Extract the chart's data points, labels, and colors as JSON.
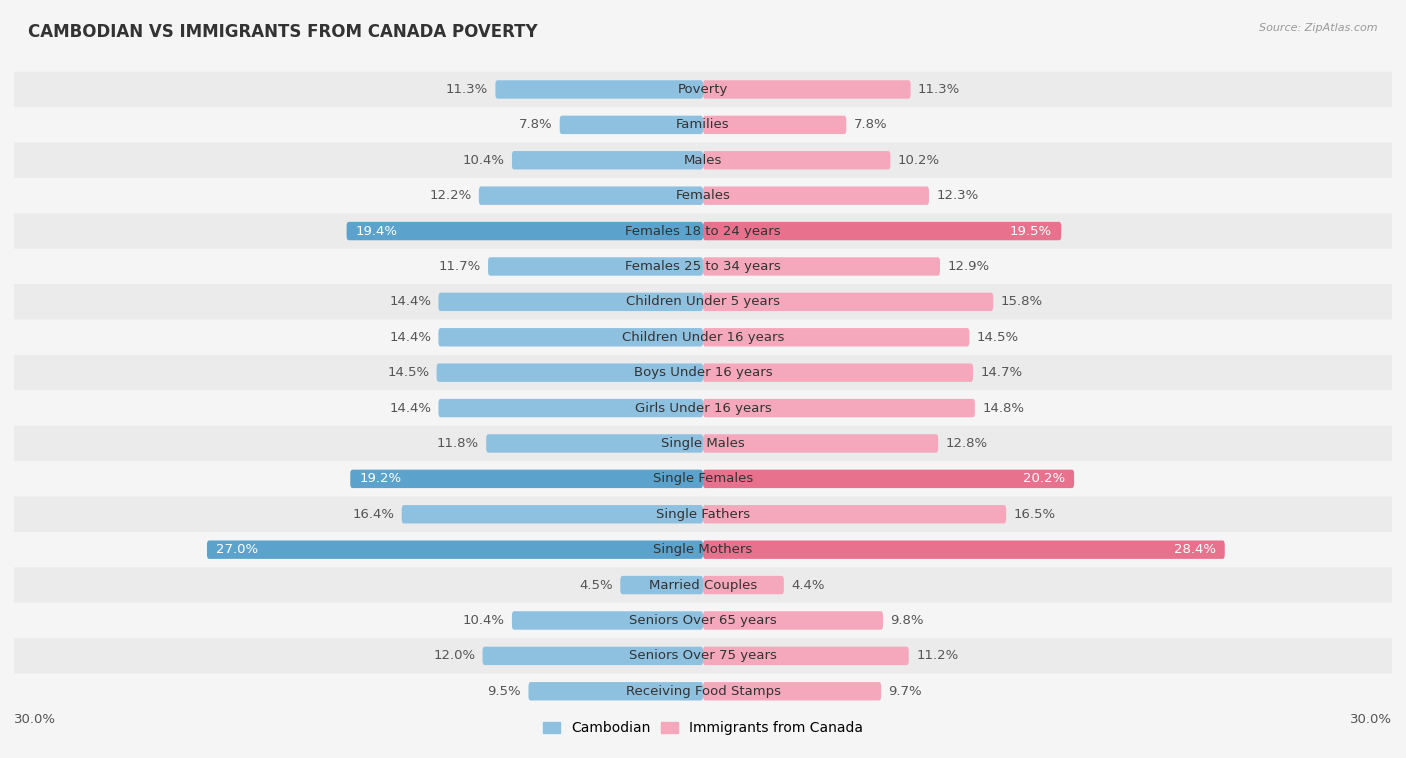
{
  "title": "CAMBODIAN VS IMMIGRANTS FROM CANADA POVERTY",
  "source": "Source: ZipAtlas.com",
  "categories": [
    "Poverty",
    "Families",
    "Males",
    "Females",
    "Females 18 to 24 years",
    "Females 25 to 34 years",
    "Children Under 5 years",
    "Children Under 16 years",
    "Boys Under 16 years",
    "Girls Under 16 years",
    "Single Males",
    "Single Females",
    "Single Fathers",
    "Single Mothers",
    "Married Couples",
    "Seniors Over 65 years",
    "Seniors Over 75 years",
    "Receiving Food Stamps"
  ],
  "cambodian": [
    11.3,
    7.8,
    10.4,
    12.2,
    19.4,
    11.7,
    14.4,
    14.4,
    14.5,
    14.4,
    11.8,
    19.2,
    16.4,
    27.0,
    4.5,
    10.4,
    12.0,
    9.5
  ],
  "canada": [
    11.3,
    7.8,
    10.2,
    12.3,
    19.5,
    12.9,
    15.8,
    14.5,
    14.7,
    14.8,
    12.8,
    20.2,
    16.5,
    28.4,
    4.4,
    9.8,
    11.2,
    9.7
  ],
  "cambodian_color": "#8ec0e0",
  "canada_color": "#f5a8bc",
  "highlight_rows": [
    4,
    11,
    13
  ],
  "highlight_cambodian_color": "#5ba3cc",
  "highlight_canada_color": "#e8728e",
  "background_color": "#f5f5f5",
  "row_colors": [
    "#ebebeb",
    "#f5f5f5"
  ],
  "xlim": 30.0,
  "label_fontsize": 9.5,
  "title_fontsize": 12,
  "bar_height": 0.52,
  "legend_labels": [
    "Cambodian",
    "Immigrants from Canada"
  ]
}
